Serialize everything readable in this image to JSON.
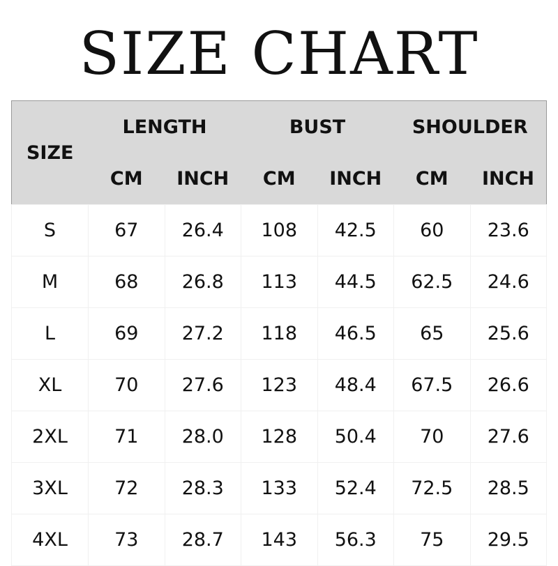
{
  "title": "SIZE CHART",
  "header": {
    "size": "SIZE",
    "groups": [
      "LENGTH",
      "BUST",
      "SHOULDER"
    ],
    "units": [
      "CM",
      "INCH",
      "CM",
      "INCH",
      "CM",
      "INCH"
    ]
  },
  "rows": [
    [
      "S",
      "67",
      "26.4",
      "108",
      "42.5",
      "60",
      "23.6"
    ],
    [
      "M",
      "68",
      "26.8",
      "113",
      "44.5",
      "62.5",
      "24.6"
    ],
    [
      "L",
      "69",
      "27.2",
      "118",
      "46.5",
      "65",
      "25.6"
    ],
    [
      "XL",
      "70",
      "27.6",
      "123",
      "48.4",
      "67.5",
      "26.6"
    ],
    [
      "2XL",
      "71",
      "28.0",
      "128",
      "50.4",
      "70",
      "27.6"
    ],
    [
      "3XL",
      "72",
      "28.3",
      "133",
      "52.4",
      "72.5",
      "28.5"
    ],
    [
      "4XL",
      "73",
      "28.7",
      "143",
      "56.3",
      "75",
      "29.5"
    ]
  ]
}
